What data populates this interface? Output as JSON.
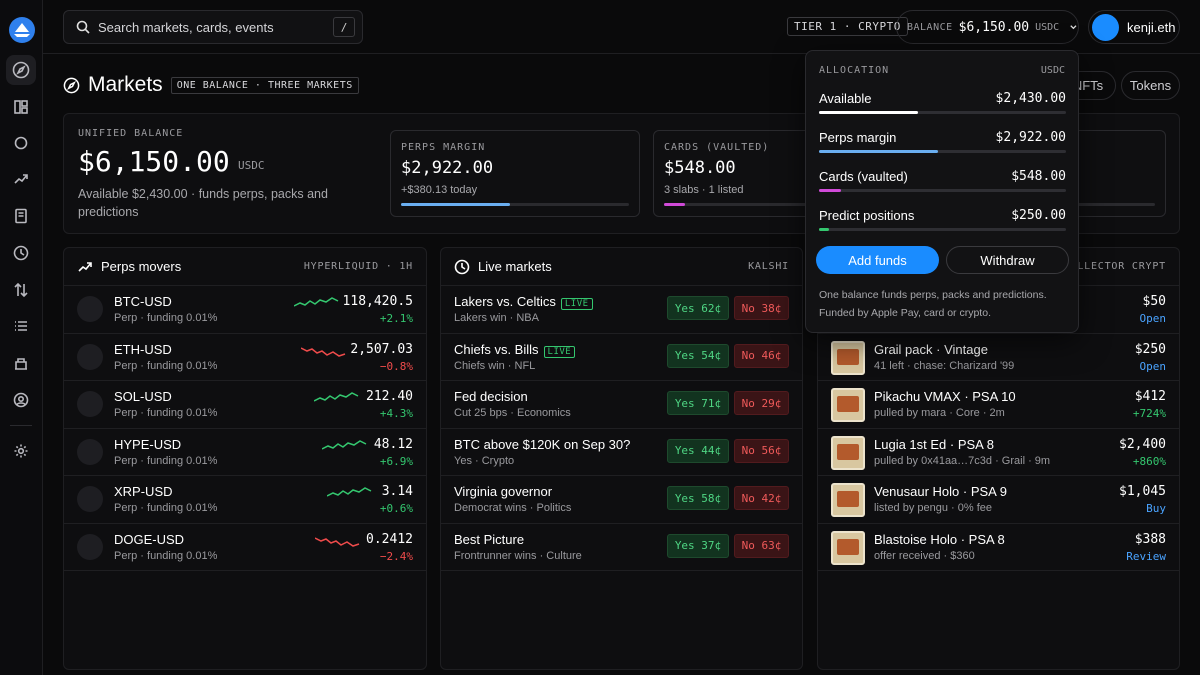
{
  "search": {
    "placeholder": "Search markets, cards, events",
    "shortcut": "/"
  },
  "topbar": {
    "tier": "TIER 1 · CRYPTO",
    "balance_label": "BALANCE",
    "balance_value": "$6,150.00",
    "balance_currency": "USDC",
    "username": "kenji.eth"
  },
  "page": {
    "title": "Markets",
    "tag": "ONE BALANCE · THREE MARKETS",
    "pills": [
      "NFTs",
      "Tokens"
    ]
  },
  "unified": {
    "label": "UNIFIED BALANCE",
    "value": "$6,150.00",
    "currency": "USDC",
    "desc": "Available $2,430.00 · funds perps, packs and predictions"
  },
  "subcards": [
    {
      "label": "PERPS MARGIN",
      "value": "$2,922.00",
      "sub": "+$380.13 today",
      "fill": 0.48,
      "color": "#6aaef0"
    },
    {
      "label": "CARDS (VAULTED)",
      "value": "$548.00",
      "sub": "3 slabs · 1 listed",
      "fill": 0.09,
      "color": "#d04ad8"
    }
  ],
  "perps": {
    "title": "Perps movers",
    "source": "HYPERLIQUID · 1H",
    "rows": [
      {
        "name": "BTC-USD",
        "sub": "Perp · funding 0.01%",
        "price": "118,420.5",
        "change": "+2.1%",
        "dir": "up"
      },
      {
        "name": "ETH-USD",
        "sub": "Perp · funding 0.01%",
        "price": "2,507.03",
        "change": "−0.8%",
        "dir": "down"
      },
      {
        "name": "SOL-USD",
        "sub": "Perp · funding 0.01%",
        "price": "212.40",
        "change": "+4.3%",
        "dir": "up"
      },
      {
        "name": "HYPE-USD",
        "sub": "Perp · funding 0.01%",
        "price": "48.12",
        "change": "+6.9%",
        "dir": "up"
      },
      {
        "name": "XRP-USD",
        "sub": "Perp · funding 0.01%",
        "price": "3.14",
        "change": "+0.6%",
        "dir": "up"
      },
      {
        "name": "DOGE-USD",
        "sub": "Perp · funding 0.01%",
        "price": "0.2412",
        "change": "−2.4%",
        "dir": "down"
      }
    ]
  },
  "live": {
    "title": "Live markets",
    "source": "KALSHI",
    "live_tag": "LIVE",
    "rows": [
      {
        "name": "Lakers vs. Celtics",
        "live": true,
        "sub": "Lakers win · NBA",
        "yes": "Yes 62¢",
        "no": "No 38¢"
      },
      {
        "name": "Chiefs vs. Bills",
        "live": true,
        "sub": "Chiefs win · NFL",
        "yes": "Yes 54¢",
        "no": "No 46¢"
      },
      {
        "name": "Fed decision",
        "live": false,
        "sub": "Cut 25 bps · Economics",
        "yes": "Yes 71¢",
        "no": "No 29¢"
      },
      {
        "name": "BTC above $120K on Sep 30?",
        "live": false,
        "sub": "Yes · Crypto",
        "yes": "Yes 44¢",
        "no": "No 56¢"
      },
      {
        "name": "Virginia governor",
        "live": false,
        "sub": "Democrat wins · Politics",
        "yes": "Yes 58¢",
        "no": "No 42¢"
      },
      {
        "name": "Best Picture",
        "live": false,
        "sub": "Frontrunner wins · Culture",
        "yes": "Yes 37¢",
        "no": "No 63¢"
      }
    ]
  },
  "cards": {
    "source": "COLLECTOR CRYPT",
    "first_row": {
      "price": "$50",
      "action": "Open"
    },
    "rows": [
      {
        "name": "Grail pack · Vintage",
        "sub": "41 left · chase: Charizard '99",
        "price": "$250",
        "action": "Open",
        "action_color": "blue"
      },
      {
        "name": "Pikachu VMAX · PSA 10",
        "sub": "pulled by mara · Core · 2m",
        "price": "$412",
        "action": "+724%",
        "action_color": "green"
      },
      {
        "name": "Lugia 1st Ed · PSA 8",
        "sub": "pulled by 0x41aa…7c3d · Grail · 9m",
        "price": "$2,400",
        "action": "+860%",
        "action_color": "green"
      },
      {
        "name": "Venusaur Holo · PSA 9",
        "sub": "listed by pengu · 0% fee",
        "price": "$1,045",
        "action": "Buy",
        "action_color": "blue"
      },
      {
        "name": "Blastoise Holo · PSA 8",
        "sub": "offer received · $360",
        "price": "$388",
        "action": "Review",
        "action_color": "blue"
      }
    ]
  },
  "dropdown": {
    "header": "ALLOCATION",
    "currency": "USDC",
    "rows": [
      {
        "name": "Available",
        "amount": "$2,430.00",
        "fill": 0.4,
        "color": "#ffffff"
      },
      {
        "name": "Perps margin",
        "amount": "$2,922.00",
        "fill": 0.48,
        "color": "#6aaef0"
      },
      {
        "name": "Cards (vaulted)",
        "amount": "$548.00",
        "fill": 0.09,
        "color": "#d04ad8"
      },
      {
        "name": "Predict positions",
        "amount": "$250.00",
        "fill": 0.04,
        "color": "#34c76f"
      }
    ],
    "add_label": "Add funds",
    "withdraw_label": "Withdraw",
    "note1": "One balance funds perps, packs and predictions.",
    "note2": "Funded by Apple Pay, card or crypto."
  }
}
